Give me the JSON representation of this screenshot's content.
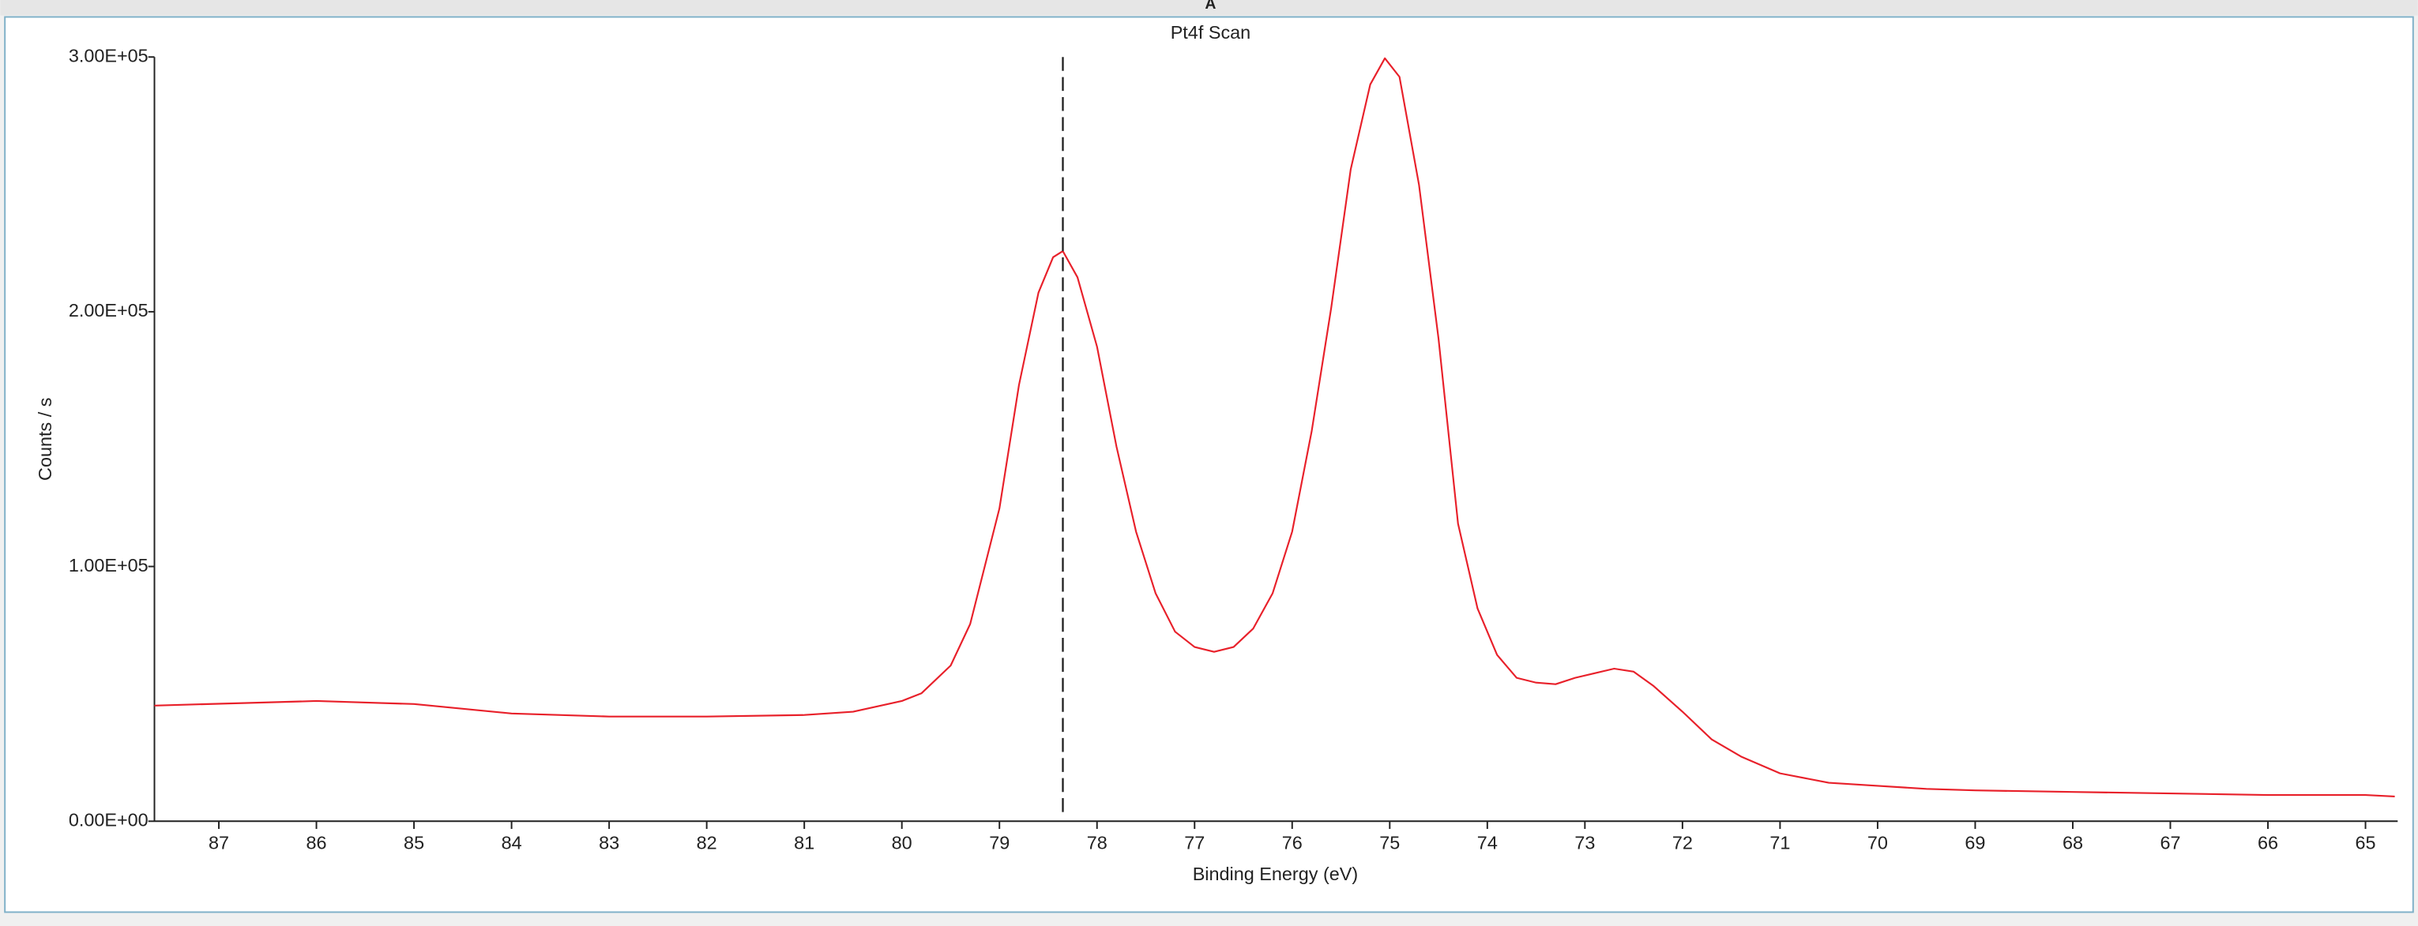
{
  "panel_label": "A",
  "chart_data": {
    "type": "line",
    "title": "Pt4f Scan",
    "x_label": "Binding Energy (eV)",
    "y_label": "Counts / s",
    "color": "#e8202a",
    "grid": false,
    "marker_x": 78.35,
    "xlim": [
      87.66,
      64.67
    ],
    "xticks": [
      87,
      86,
      85,
      84,
      83,
      82,
      81,
      80,
      79,
      78,
      77,
      76,
      75,
      74,
      73,
      72,
      71,
      70,
      69,
      68,
      67,
      66,
      65
    ],
    "ylim": [
      0,
      300000
    ],
    "yticks": [
      {
        "value": 0,
        "label": "0.00E+00"
      },
      {
        "value": 100000,
        "label": "1.00E+05"
      },
      {
        "value": 200000,
        "label": "2.00E+05"
      },
      {
        "value": 300000,
        "label": "3.00E+05"
      }
    ],
    "x": [
      87.66,
      86,
      85,
      84,
      83,
      82,
      81,
      80.5,
      80,
      79.8,
      79.5,
      79.3,
      79.0,
      78.8,
      78.6,
      78.45,
      78.35,
      78.2,
      78.0,
      77.8,
      77.6,
      77.4,
      77.2,
      77.0,
      76.8,
      76.6,
      76.4,
      76.2,
      76.0,
      75.8,
      75.6,
      75.4,
      75.2,
      75.05,
      74.9,
      74.7,
      74.5,
      74.3,
      74.1,
      73.9,
      73.7,
      73.5,
      73.3,
      73.1,
      72.9,
      72.7,
      72.5,
      72.3,
      72.0,
      71.7,
      71.4,
      71.0,
      70.5,
      70.0,
      69.5,
      69,
      68,
      67,
      66,
      65,
      64.7
    ],
    "values": [
      45400,
      47200,
      46000,
      42300,
      41100,
      41100,
      41700,
      43000,
      47200,
      50200,
      61100,
      77400,
      122800,
      171200,
      207500,
      221400,
      223800,
      213500,
      186300,
      147000,
      113700,
      89500,
      74400,
      68400,
      66500,
      68400,
      75600,
      89500,
      113700,
      153100,
      201500,
      255900,
      289200,
      299500,
      292200,
      249800,
      189400,
      116800,
      83500,
      65300,
      56300,
      54400,
      53800,
      56300,
      58100,
      59900,
      58700,
      53200,
      43000,
      32100,
      25400,
      18800,
      15100,
      13900,
      12700,
      12100,
      11500,
      10900,
      10300,
      10300,
      9700
    ]
  }
}
